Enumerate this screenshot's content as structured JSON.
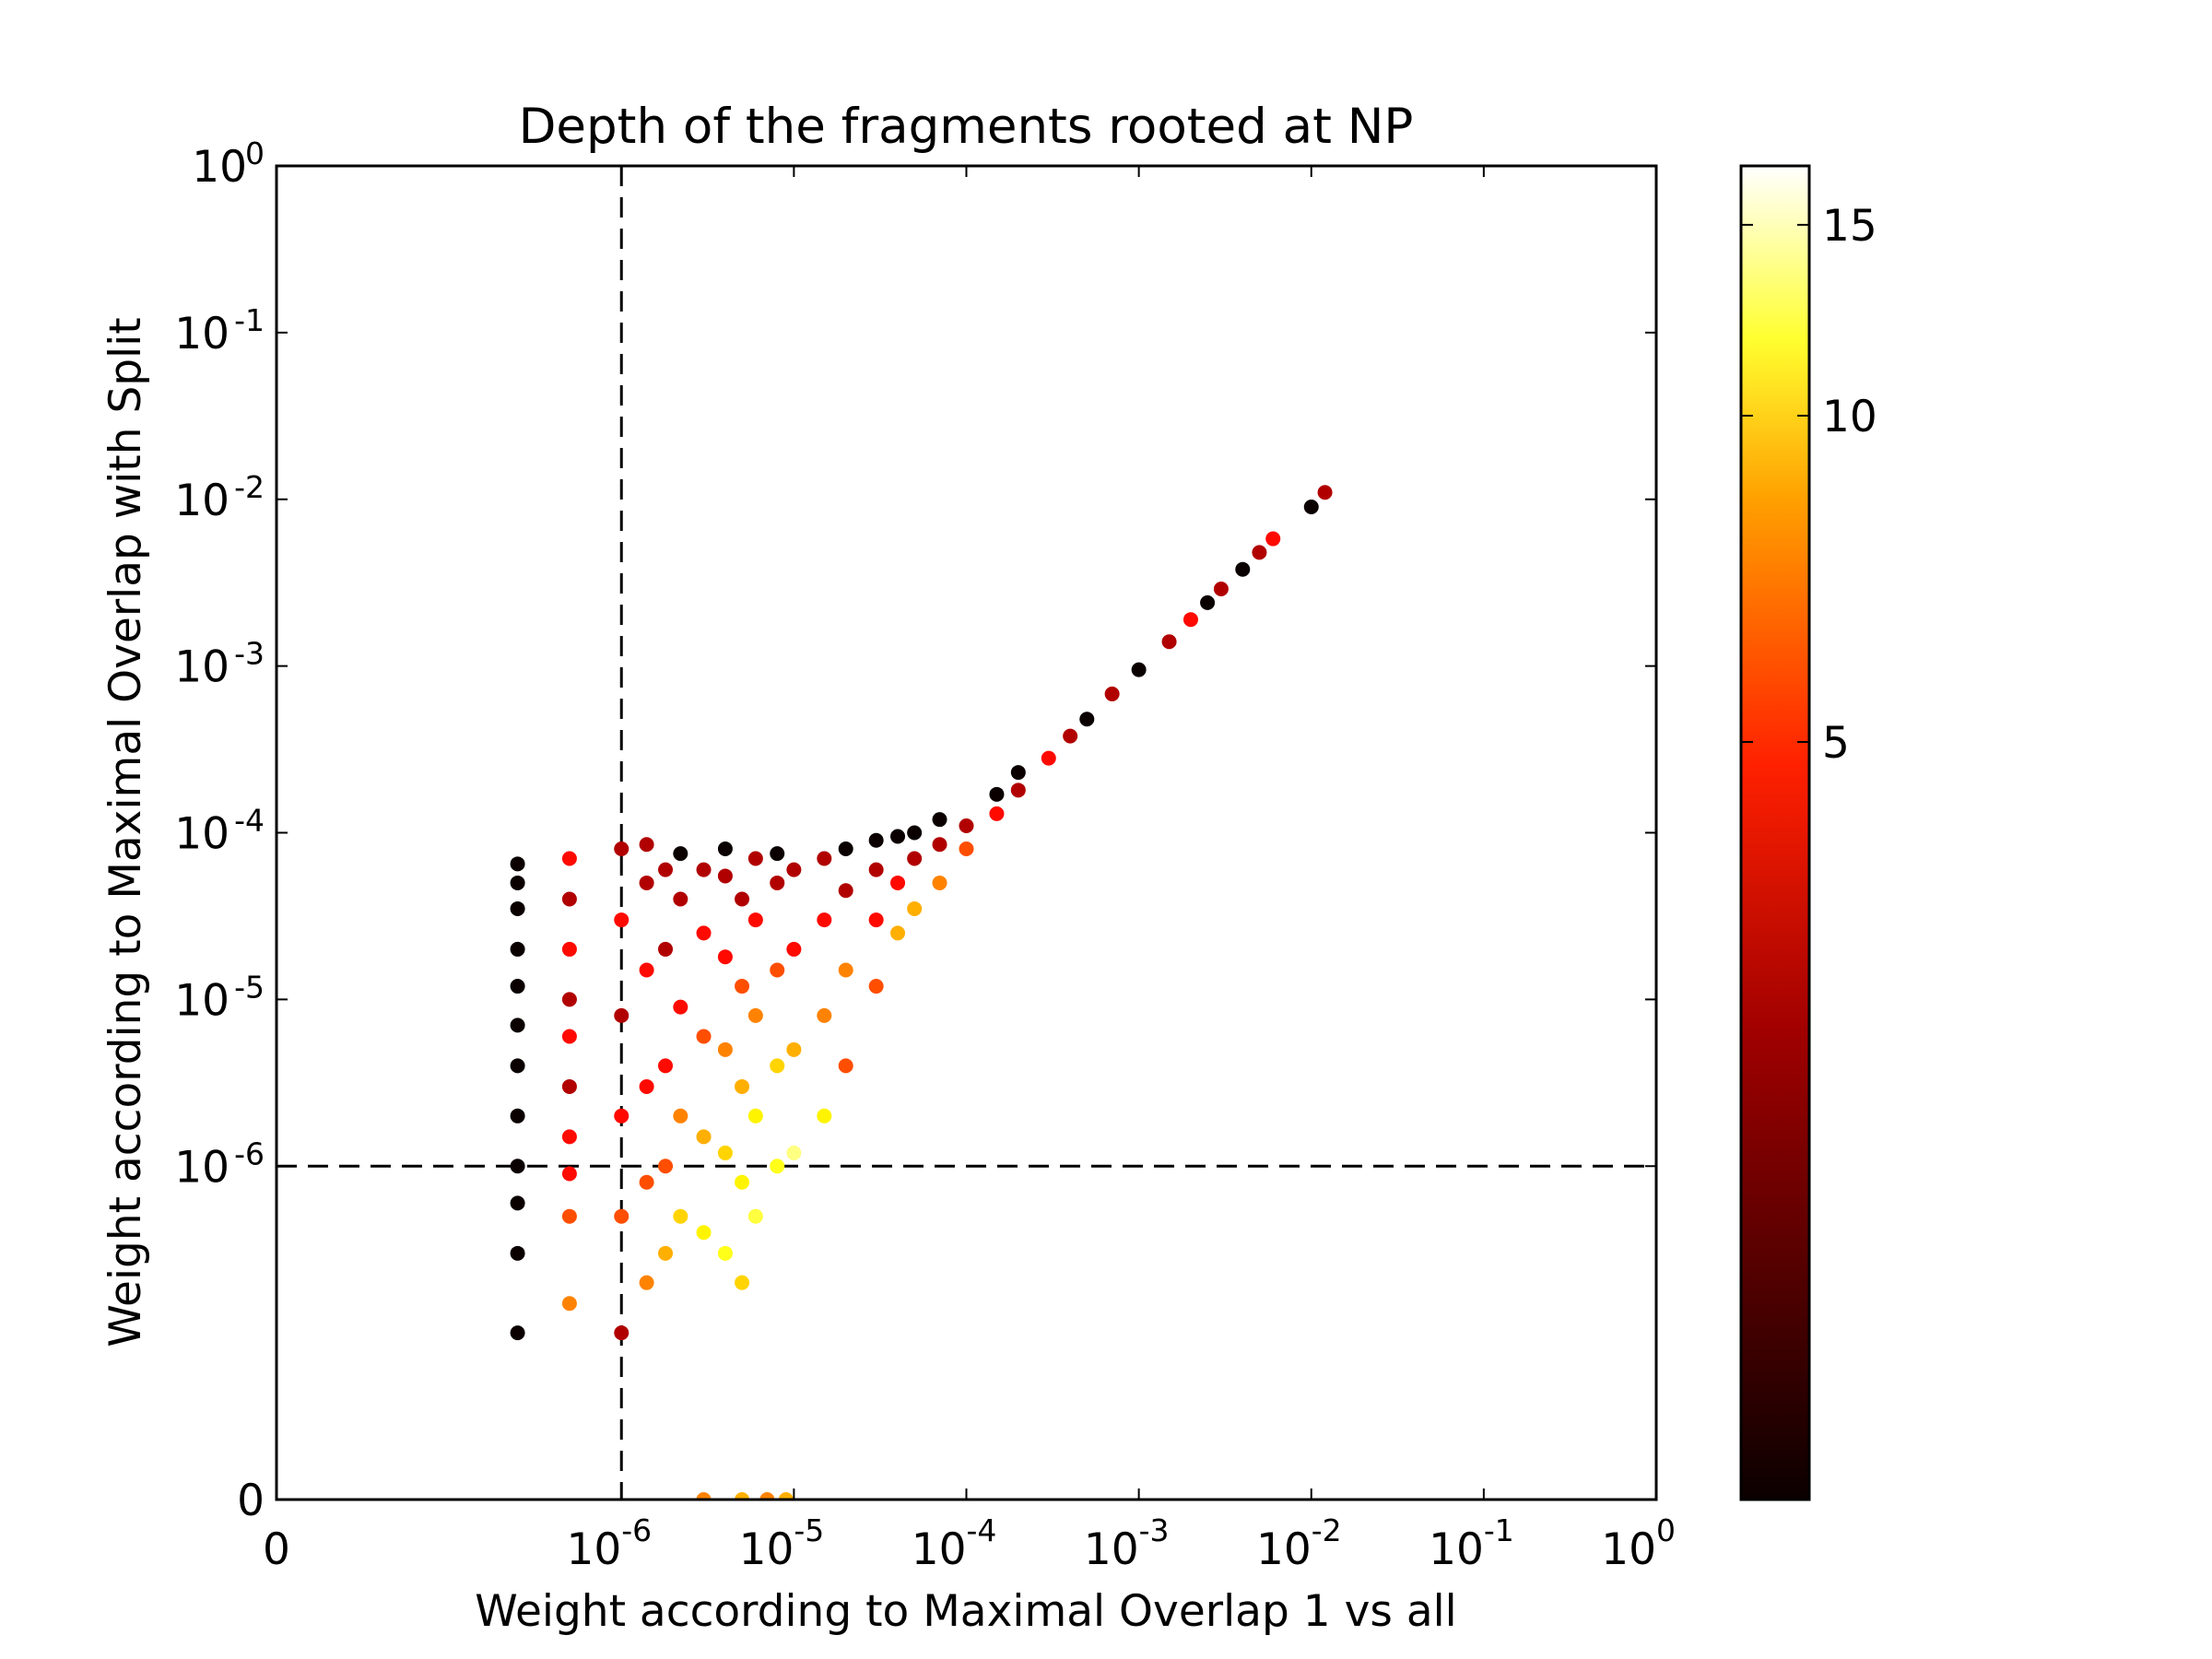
{
  "chart_data": {
    "type": "scatter",
    "title": "Depth of the fragments rooted at NP",
    "xlabel": "Weight according to Maximal Overlap 1 vs all",
    "ylabel": "Weight according to Maximal Overlap with Split",
    "x_scale": "symlog",
    "y_scale": "symlog",
    "x_ticks": [
      {
        "value": 0,
        "label": "0",
        "exp": ""
      },
      {
        "value": 1e-06,
        "label": "10",
        "exp": "-6"
      },
      {
        "value": 1e-05,
        "label": "10",
        "exp": "-5"
      },
      {
        "value": 0.0001,
        "label": "10",
        "exp": "-4"
      },
      {
        "value": 0.001,
        "label": "10",
        "exp": "-3"
      },
      {
        "value": 0.01,
        "label": "10",
        "exp": "-2"
      },
      {
        "value": 0.1,
        "label": "10",
        "exp": "-1"
      },
      {
        "value": 1,
        "label": "10",
        "exp": "0"
      }
    ],
    "y_ticks": [
      {
        "value": 0,
        "label": "0",
        "exp": ""
      },
      {
        "value": 1e-06,
        "label": "10",
        "exp": "-6"
      },
      {
        "value": 1e-05,
        "label": "10",
        "exp": "-5"
      },
      {
        "value": 0.0001,
        "label": "10",
        "exp": "-4"
      },
      {
        "value": 0.001,
        "label": "10",
        "exp": "-3"
      },
      {
        "value": 0.01,
        "label": "10",
        "exp": "-2"
      },
      {
        "value": 0.1,
        "label": "10",
        "exp": "-1"
      },
      {
        "value": 1,
        "label": "10",
        "exp": "0"
      }
    ],
    "reference_lines": [
      {
        "axis": "x",
        "value": 1e-06,
        "style": "dashed"
      },
      {
        "axis": "y",
        "value": 1e-06,
        "style": "dashed"
      }
    ],
    "colorbar": {
      "colormap": "hot",
      "range": [
        1,
        17
      ],
      "scale": "log",
      "ticks": [
        {
          "value": 5,
          "label": "5"
        },
        {
          "value": 10,
          "label": "10"
        },
        {
          "value": 15,
          "label": "15"
        }
      ]
    },
    "points": [
      [
        2.5e-07,
        1e-07,
        1
      ],
      [
        2.5e-07,
        3e-07,
        1
      ],
      [
        2.5e-07,
        6e-07,
        1
      ],
      [
        2.5e-07,
        1e-06,
        1
      ],
      [
        2.5e-07,
        2e-06,
        1
      ],
      [
        2.5e-07,
        4e-06,
        1
      ],
      [
        2.5e-07,
        7e-06,
        1
      ],
      [
        2.5e-07,
        1.2e-05,
        1
      ],
      [
        2.5e-07,
        2e-05,
        1
      ],
      [
        2.5e-07,
        3.5e-05,
        1
      ],
      [
        2.5e-07,
        5e-05,
        1
      ],
      [
        2.5e-07,
        6.5e-05,
        1
      ],
      [
        5e-07,
        1.5e-07,
        5
      ],
      [
        5e-07,
        5e-07,
        4
      ],
      [
        5e-07,
        9e-07,
        3
      ],
      [
        5e-07,
        1.5e-06,
        3
      ],
      [
        5e-07,
        3e-06,
        2
      ],
      [
        5e-07,
        6e-06,
        3
      ],
      [
        5e-07,
        1e-05,
        2
      ],
      [
        5e-07,
        2e-05,
        3
      ],
      [
        5e-07,
        4e-05,
        2
      ],
      [
        5e-07,
        7e-05,
        3
      ],
      [
        1e-06,
        1e-07,
        2
      ],
      [
        1e-06,
        5e-07,
        4
      ],
      [
        1e-06,
        2e-06,
        3
      ],
      [
        1e-06,
        8e-06,
        2
      ],
      [
        1e-06,
        3e-05,
        3
      ],
      [
        1e-06,
        8e-05,
        2
      ],
      [
        1.4e-06,
        2e-07,
        5
      ],
      [
        1.4e-06,
        8e-07,
        4
      ],
      [
        1.4e-06,
        3e-06,
        3
      ],
      [
        1.4e-06,
        1.5e-05,
        3
      ],
      [
        1.4e-06,
        5e-05,
        2
      ],
      [
        1.4e-06,
        8.5e-05,
        2
      ],
      [
        1.8e-06,
        3e-07,
        6
      ],
      [
        1.8e-06,
        1e-06,
        4
      ],
      [
        1.8e-06,
        4e-06,
        3
      ],
      [
        1.8e-06,
        2e-05,
        2
      ],
      [
        1.8e-06,
        6e-05,
        2
      ],
      [
        2.2e-06,
        5e-07,
        7
      ],
      [
        2.2e-06,
        2e-06,
        5
      ],
      [
        2.2e-06,
        9e-06,
        3
      ],
      [
        2.2e-06,
        4e-05,
        2
      ],
      [
        2.2e-06,
        7.5e-05,
        1
      ],
      [
        3e-06,
        4e-07,
        8
      ],
      [
        3e-06,
        1.5e-06,
        6
      ],
      [
        3e-06,
        6e-06,
        4
      ],
      [
        3e-06,
        2.5e-05,
        3
      ],
      [
        3e-06,
        6e-05,
        2
      ],
      [
        4e-06,
        3e-07,
        9
      ],
      [
        4e-06,
        1.2e-06,
        7
      ],
      [
        4e-06,
        5e-06,
        5
      ],
      [
        4e-06,
        1.8e-05,
        3
      ],
      [
        4e-06,
        5.5e-05,
        2
      ],
      [
        4e-06,
        8e-05,
        1
      ],
      [
        5e-06,
        2e-07,
        7
      ],
      [
        5e-06,
        8e-07,
        8
      ],
      [
        5e-06,
        3e-06,
        6
      ],
      [
        5e-06,
        1.2e-05,
        4
      ],
      [
        5e-06,
        4e-05,
        2
      ],
      [
        6e-06,
        5e-07,
        10
      ],
      [
        6e-06,
        2e-06,
        8
      ],
      [
        6e-06,
        8e-06,
        5
      ],
      [
        6e-06,
        3e-05,
        3
      ],
      [
        6e-06,
        7e-05,
        2
      ],
      [
        8e-06,
        1e-06,
        9
      ],
      [
        8e-06,
        4e-06,
        7
      ],
      [
        8e-06,
        1.5e-05,
        4
      ],
      [
        8e-06,
        5e-05,
        2
      ],
      [
        8e-06,
        7.5e-05,
        1
      ],
      [
        1e-05,
        1.2e-06,
        12
      ],
      [
        1e-05,
        5e-06,
        6
      ],
      [
        1e-05,
        2e-05,
        3
      ],
      [
        1e-05,
        6e-05,
        2
      ],
      [
        1.5e-05,
        2e-06,
        8
      ],
      [
        1.5e-05,
        8e-06,
        5
      ],
      [
        1.5e-05,
        3e-05,
        3
      ],
      [
        1.5e-05,
        7e-05,
        2
      ],
      [
        2e-05,
        4e-06,
        4
      ],
      [
        2e-05,
        1.5e-05,
        5
      ],
      [
        2e-05,
        4.5e-05,
        2
      ],
      [
        2e-05,
        8e-05,
        1
      ],
      [
        3e-05,
        1.2e-05,
        4
      ],
      [
        3e-05,
        3e-05,
        3
      ],
      [
        3e-05,
        6e-05,
        2
      ],
      [
        3e-05,
        9e-05,
        1
      ],
      [
        4e-05,
        2.5e-05,
        6
      ],
      [
        4e-05,
        5e-05,
        3
      ],
      [
        4e-05,
        9.5e-05,
        1
      ],
      [
        5e-05,
        3.5e-05,
        6
      ],
      [
        5e-05,
        7e-05,
        2
      ],
      [
        5e-05,
        0.0001,
        1
      ],
      [
        7e-05,
        5e-05,
        5
      ],
      [
        7e-05,
        8.5e-05,
        2
      ],
      [
        7e-05,
        0.00012,
        1
      ],
      [
        0.0001,
        8e-05,
        4
      ],
      [
        0.0001,
        0.00011,
        2
      ],
      [
        0.00015,
        0.00013,
        3
      ],
      [
        0.00015,
        0.00017,
        1
      ],
      [
        0.0002,
        0.00018,
        2
      ],
      [
        0.0002,
        0.00023,
        1
      ],
      [
        0.0003,
        0.00028,
        3
      ],
      [
        0.0004,
        0.00038,
        2
      ],
      [
        0.0005,
        0.00048,
        1
      ],
      [
        0.0007,
        0.00068,
        2
      ],
      [
        0.001,
        0.00095,
        1
      ],
      [
        0.0015,
        0.0014,
        2
      ],
      [
        0.002,
        0.0019,
        3
      ],
      [
        0.0025,
        0.0024,
        1
      ],
      [
        0.003,
        0.0029,
        2
      ],
      [
        0.004,
        0.0038,
        1
      ],
      [
        0.005,
        0.0048,
        2
      ],
      [
        0.006,
        0.0058,
        3
      ],
      [
        0.01,
        0.009,
        1
      ],
      [
        0.012,
        0.011,
        2
      ],
      [
        3e-06,
        0,
        5
      ],
      [
        5e-06,
        0,
        6
      ],
      [
        7e-06,
        0,
        5
      ],
      [
        9e-06,
        0,
        6
      ]
    ]
  }
}
